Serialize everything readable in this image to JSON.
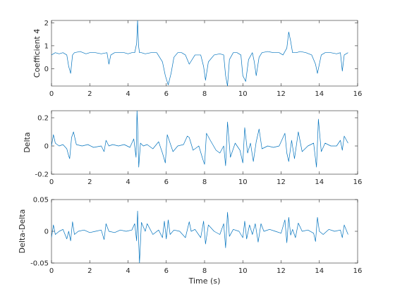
{
  "chart_data": [
    {
      "type": "line",
      "ylabel": "Coefficient 4",
      "xlabel": "",
      "xlim": [
        0,
        16
      ],
      "ylim": [
        -0.75,
        2.1
      ],
      "xticks": [
        "0",
        "2",
        "4",
        "6",
        "8",
        "10",
        "12",
        "14",
        "16"
      ],
      "yticks": [
        "0",
        "1",
        "2"
      ],
      "grid": false,
      "series": [
        {
          "color": "#0072bd",
          "x": [
            0.0,
            0.2,
            0.4,
            0.6,
            0.8,
            0.9,
            1.0,
            1.1,
            1.2,
            1.5,
            1.8,
            2.0,
            2.3,
            2.6,
            2.9,
            3.0,
            3.1,
            3.3,
            3.5,
            3.8,
            4.0,
            4.2,
            4.35,
            4.45,
            4.5,
            4.55,
            4.6,
            4.7,
            4.9,
            5.2,
            5.5,
            5.8,
            5.95,
            6.1,
            6.25,
            6.4,
            6.6,
            6.8,
            7.0,
            7.2,
            7.5,
            7.8,
            7.95,
            8.05,
            8.2,
            8.5,
            8.8,
            9.0,
            9.1,
            9.2,
            9.3,
            9.5,
            9.7,
            9.9,
            10.0,
            10.15,
            10.3,
            10.5,
            10.6,
            10.7,
            10.85,
            11.0,
            11.3,
            11.6,
            11.9,
            12.1,
            12.3,
            12.4,
            12.5,
            12.6,
            12.8,
            13.0,
            13.3,
            13.6,
            13.8,
            13.9,
            14.1,
            14.3,
            14.6,
            14.9,
            15.1,
            15.2,
            15.3,
            15.5
          ],
          "y": [
            0.6,
            0.7,
            0.65,
            0.7,
            0.6,
            0.1,
            -0.2,
            0.6,
            0.7,
            0.75,
            0.65,
            0.7,
            0.7,
            0.65,
            0.7,
            0.2,
            0.6,
            0.7,
            0.7,
            0.7,
            0.65,
            0.7,
            0.7,
            1.1,
            2.1,
            1.0,
            0.7,
            0.7,
            0.65,
            0.7,
            0.7,
            0.3,
            -0.3,
            -0.7,
            -0.2,
            0.5,
            0.7,
            0.7,
            0.6,
            0.2,
            0.6,
            0.6,
            0.1,
            -0.5,
            0.3,
            0.6,
            0.65,
            0.6,
            -0.3,
            -0.75,
            0.4,
            0.7,
            0.7,
            0.6,
            -0.3,
            -0.55,
            0.4,
            0.7,
            0.3,
            -0.3,
            0.5,
            0.7,
            0.75,
            0.7,
            0.7,
            0.6,
            0.9,
            1.6,
            1.2,
            0.7,
            0.7,
            0.75,
            0.7,
            0.6,
            0.2,
            -0.2,
            0.6,
            0.7,
            0.7,
            0.65,
            0.7,
            -0.1,
            0.6,
            0.7
          ]
        }
      ]
    },
    {
      "type": "line",
      "ylabel": "Delta",
      "xlabel": "",
      "xlim": [
        0,
        16
      ],
      "ylim": [
        -0.2,
        0.25
      ],
      "xticks": [
        "0",
        "2",
        "4",
        "6",
        "8",
        "10",
        "12",
        "14",
        "16"
      ],
      "yticks": [
        "-0.2",
        "0",
        "0.2"
      ],
      "grid": false,
      "series": [
        {
          "color": "#0072bd",
          "x": [
            0.0,
            0.1,
            0.2,
            0.4,
            0.6,
            0.8,
            0.9,
            0.95,
            1.05,
            1.15,
            1.3,
            1.6,
            1.9,
            2.2,
            2.6,
            2.75,
            2.85,
            3.0,
            3.2,
            3.5,
            3.8,
            4.1,
            4.3,
            4.42,
            4.47,
            4.5,
            4.56,
            4.65,
            4.8,
            5.0,
            5.3,
            5.6,
            5.8,
            5.95,
            6.05,
            6.2,
            6.35,
            6.6,
            6.9,
            7.1,
            7.2,
            7.4,
            7.7,
            7.9,
            8.0,
            8.1,
            8.3,
            8.6,
            8.8,
            9.0,
            9.1,
            9.2,
            9.35,
            9.6,
            9.85,
            10.0,
            10.1,
            10.25,
            10.4,
            10.55,
            10.7,
            10.85,
            11.0,
            11.3,
            11.6,
            11.9,
            12.2,
            12.3,
            12.4,
            12.55,
            12.7,
            12.9,
            13.1,
            13.4,
            13.7,
            13.85,
            13.95,
            14.1,
            14.3,
            14.6,
            14.9,
            15.1,
            15.2,
            15.3,
            15.5
          ],
          "y": [
            0.0,
            0.08,
            0.02,
            0.0,
            0.01,
            -0.02,
            -0.07,
            -0.09,
            0.06,
            0.1,
            0.01,
            0.0,
            0.01,
            -0.01,
            0.0,
            -0.04,
            0.04,
            0.0,
            0.01,
            0.0,
            0.01,
            -0.01,
            0.05,
            -0.08,
            0.25,
            0.15,
            -0.15,
            0.02,
            0.0,
            0.01,
            -0.02,
            0.03,
            -0.05,
            -0.12,
            0.08,
            0.02,
            -0.04,
            0.0,
            0.01,
            0.07,
            0.06,
            -0.03,
            0.0,
            -0.09,
            -0.13,
            0.09,
            0.04,
            -0.03,
            -0.05,
            0.0,
            -0.14,
            0.17,
            -0.08,
            0.02,
            -0.03,
            -0.12,
            0.13,
            -0.05,
            0.02,
            -0.11,
            0.03,
            0.12,
            -0.02,
            0.0,
            -0.01,
            0.0,
            0.09,
            -0.05,
            -0.11,
            0.04,
            -0.09,
            0.1,
            -0.04,
            0.0,
            0.02,
            -0.15,
            0.19,
            -0.04,
            0.02,
            0.0,
            0.0,
            0.04,
            -0.03,
            0.07,
            0.02
          ]
        }
      ]
    },
    {
      "type": "line",
      "ylabel": "Delta-Delta",
      "xlabel": "Time (s)",
      "xlim": [
        0,
        16
      ],
      "ylim": [
        -0.05,
        0.05
      ],
      "xticks": [
        "0",
        "2",
        "4",
        "6",
        "8",
        "10",
        "12",
        "14",
        "16"
      ],
      "yticks": [
        "-0.05",
        "0",
        "0.05"
      ],
      "grid": false,
      "series": [
        {
          "color": "#0072bd",
          "x": [
            0.0,
            0.1,
            0.2,
            0.4,
            0.6,
            0.8,
            0.9,
            1.0,
            1.1,
            1.2,
            1.4,
            1.7,
            2.0,
            2.3,
            2.6,
            2.75,
            2.85,
            3.0,
            3.3,
            3.6,
            3.9,
            4.2,
            4.35,
            4.45,
            4.5,
            4.55,
            4.6,
            4.7,
            4.9,
            5.0,
            5.3,
            5.6,
            5.8,
            5.9,
            6.0,
            6.1,
            6.2,
            6.4,
            6.7,
            7.0,
            7.2,
            7.3,
            7.5,
            7.8,
            7.95,
            8.05,
            8.2,
            8.5,
            8.8,
            9.0,
            9.1,
            9.2,
            9.3,
            9.5,
            9.8,
            10.0,
            10.1,
            10.2,
            10.35,
            10.5,
            10.65,
            10.8,
            10.95,
            11.1,
            11.4,
            11.7,
            12.0,
            12.2,
            12.3,
            12.4,
            12.5,
            12.6,
            12.75,
            12.9,
            13.1,
            13.4,
            13.7,
            13.8,
            13.9,
            14.0,
            14.2,
            14.5,
            14.8,
            15.1,
            15.2,
            15.3,
            15.5
          ],
          "y": [
            -0.01,
            0.01,
            -0.005,
            0.0,
            0.003,
            -0.012,
            0.0,
            -0.015,
            0.015,
            -0.005,
            0.0,
            0.002,
            -0.002,
            0.0,
            0.002,
            -0.013,
            0.012,
            0.0,
            -0.002,
            0.002,
            0.0,
            0.002,
            0.012,
            -0.015,
            0.032,
            -0.012,
            -0.05,
            0.014,
            0.0,
            0.012,
            -0.005,
            0.002,
            -0.01,
            0.016,
            -0.012,
            0.018,
            -0.005,
            0.002,
            0.0,
            -0.01,
            0.015,
            0.0,
            0.003,
            -0.01,
            0.016,
            -0.02,
            0.01,
            0.0,
            -0.005,
            0.012,
            -0.026,
            0.03,
            -0.008,
            0.003,
            0.0,
            -0.01,
            0.016,
            -0.012,
            0.01,
            -0.005,
            0.012,
            -0.017,
            0.012,
            0.0,
            0.003,
            0.0,
            -0.003,
            0.018,
            -0.018,
            0.022,
            -0.006,
            0.003,
            -0.01,
            0.013,
            0.0,
            0.002,
            -0.003,
            -0.016,
            0.022,
            0.0,
            -0.005,
            0.003,
            0.0,
            0.002,
            -0.01,
            0.01,
            -0.005
          ]
        }
      ]
    }
  ]
}
